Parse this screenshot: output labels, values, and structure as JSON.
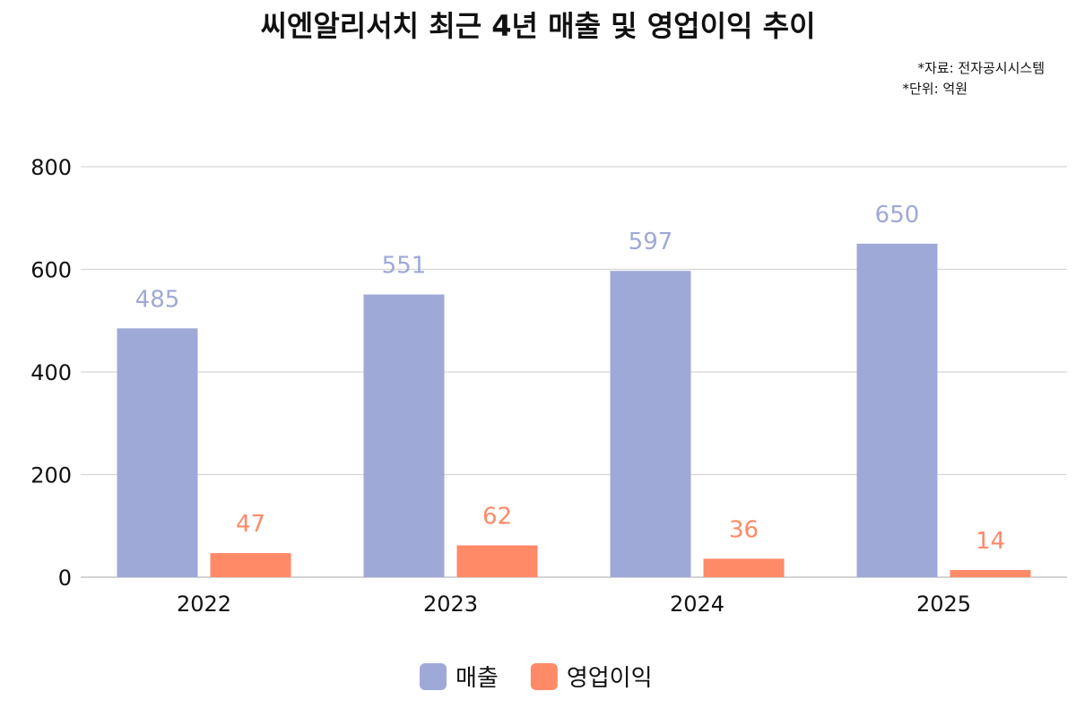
{
  "chart_data": {
    "type": "bar",
    "title": "씨엔알리서치 최근 4년 매출 및 영업이익 추이",
    "notes": [
      "*자료: 전자공시시스템",
      "*단위: 억원"
    ],
    "categories": [
      "2022",
      "2023",
      "2024",
      "2025"
    ],
    "series": [
      {
        "name": "매출",
        "values": [
          485,
          551,
          597,
          650
        ],
        "color": "#9FA9D7"
      },
      {
        "name": "영업이익",
        "values": [
          47,
          62,
          36,
          14
        ],
        "color": "#FE8A68"
      }
    ],
    "ylim": [
      0,
      800
    ],
    "yticks": [
      0,
      200,
      400,
      600,
      800
    ],
    "grid": true,
    "legend": "bottom-center",
    "xlabel": "",
    "ylabel": ""
  }
}
